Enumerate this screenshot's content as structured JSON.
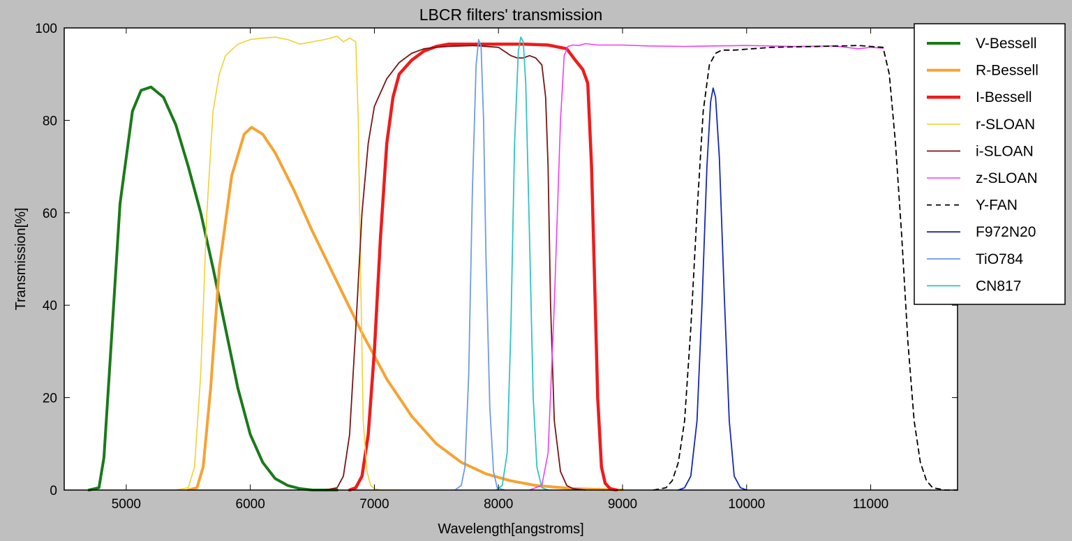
{
  "chart_data": {
    "type": "line",
    "title": "LBCR filters' transmission",
    "xlabel": "Wavelength[angstroms]",
    "ylabel": "Transmission[%]",
    "xlim": [
      4500,
      11700
    ],
    "ylim": [
      0,
      100
    ],
    "xticks": [
      5000,
      6000,
      7000,
      8000,
      9000,
      10000,
      11000
    ],
    "yticks": [
      0,
      20,
      40,
      60,
      80,
      100
    ],
    "legend_position": "top-right",
    "grid": false,
    "series": [
      {
        "name": "V-Bessell",
        "color": "#1a7a1a",
        "width": 4,
        "dash": "",
        "x": [
          4700,
          4780,
          4820,
          4870,
          4950,
          5050,
          5120,
          5200,
          5300,
          5400,
          5500,
          5600,
          5700,
          5800,
          5900,
          6000,
          6100,
          6200,
          6300,
          6400,
          6500,
          6700
        ],
        "y": [
          0,
          0.5,
          7,
          28,
          62,
          82,
          86.5,
          87.2,
          85,
          79,
          70,
          60,
          48,
          35,
          22,
          12,
          6,
          2.5,
          1,
          0.3,
          0,
          0
        ]
      },
      {
        "name": "R-Bessell",
        "color": "#f5a332",
        "width": 4,
        "dash": "",
        "x": [
          5500,
          5570,
          5620,
          5680,
          5750,
          5850,
          5950,
          6010,
          6100,
          6200,
          6350,
          6500,
          6700,
          6900,
          7100,
          7300,
          7500,
          7700,
          7900,
          8100,
          8300,
          8600,
          9000
        ],
        "y": [
          0,
          0.5,
          5,
          22,
          48,
          68,
          77,
          78.5,
          77,
          73,
          65,
          56,
          45,
          34,
          24,
          16,
          10,
          6,
          3.5,
          2,
          1,
          0.3,
          0
        ]
      },
      {
        "name": "I-Bessell",
        "color": "#ee1c1c",
        "width": 4.5,
        "dash": "",
        "x": [
          6800,
          6850,
          6900,
          6950,
          7000,
          7050,
          7100,
          7150,
          7200,
          7300,
          7400,
          7500,
          7600,
          7800,
          8000,
          8200,
          8400,
          8550,
          8620,
          8680,
          8720,
          8750,
          8780,
          8800,
          8830,
          8860,
          8900,
          8950
        ],
        "y": [
          0,
          0.5,
          3,
          12,
          30,
          55,
          75,
          85,
          90,
          93,
          95,
          96,
          96.5,
          96.5,
          96.5,
          96.5,
          96.3,
          95.5,
          93,
          91,
          88,
          70,
          40,
          20,
          5,
          1.5,
          0.3,
          0
        ]
      },
      {
        "name": "r-SLOAN",
        "color": "#f2d12e",
        "width": 1.6,
        "dash": "",
        "x": [
          5400,
          5500,
          5550,
          5600,
          5650,
          5700,
          5750,
          5800,
          5900,
          6000,
          6100,
          6200,
          6300,
          6400,
          6500,
          6600,
          6700,
          6750,
          6800,
          6850,
          6870,
          6890,
          6910,
          6940,
          6970,
          7000,
          7050,
          7200
        ],
        "y": [
          0,
          0.5,
          5,
          25,
          60,
          82,
          90,
          94,
          96.5,
          97.5,
          97.8,
          98,
          97.5,
          96.5,
          97,
          97.5,
          98.2,
          97,
          97.8,
          97,
          80,
          45,
          15,
          4,
          1,
          0.3,
          0,
          0
        ]
      },
      {
        "name": "i-SLOAN",
        "color": "#7a1414",
        "width": 1.8,
        "dash": "",
        "x": [
          6600,
          6700,
          6750,
          6800,
          6850,
          6900,
          6950,
          7000,
          7100,
          7200,
          7300,
          7400,
          7500,
          7600,
          7800,
          8000,
          8100,
          8150,
          8200,
          8250,
          8300,
          8350,
          8380,
          8400,
          8420,
          8450,
          8500,
          8550,
          8600,
          8700
        ],
        "y": [
          0,
          0.5,
          3,
          12,
          35,
          60,
          75,
          83,
          89,
          92.5,
          94.5,
          95.5,
          95.8,
          96,
          96.2,
          95.8,
          94,
          93.5,
          93.5,
          94,
          93.5,
          92,
          85,
          70,
          40,
          15,
          4,
          1,
          0.3,
          0
        ]
      },
      {
        "name": "z-SLOAN",
        "color": "#f23cf2",
        "width": 1.6,
        "dash": "",
        "x": [
          8250,
          8350,
          8400,
          8450,
          8500,
          8530,
          8560,
          8600,
          8650,
          8700,
          8800,
          9000,
          9200,
          9500,
          10000,
          10400,
          10700,
          10900,
          11000,
          11100
        ],
        "y": [
          0,
          1,
          8,
          40,
          80,
          94,
          96,
          96.3,
          96.2,
          96.6,
          96.3,
          96.3,
          96.1,
          96,
          96.2,
          96,
          96.1,
          95.5,
          95.8,
          95.6
        ]
      },
      {
        "name": "Y-FAN",
        "color": "#000000",
        "width": 1.8,
        "dash": "7,6",
        "x": [
          9250,
          9350,
          9400,
          9450,
          9500,
          9550,
          9600,
          9650,
          9700,
          9750,
          9800,
          9900,
          10200,
          10600,
          10900,
          11100,
          11150,
          11200,
          11250,
          11300,
          11350,
          11400,
          11450,
          11500,
          11600,
          11700
        ],
        "y": [
          0,
          0.5,
          2,
          6,
          15,
          35,
          60,
          82,
          92,
          94.5,
          95.2,
          95.2,
          95.8,
          96,
          96.2,
          95.8,
          90,
          75,
          55,
          32,
          15,
          6,
          2,
          0.5,
          0,
          0
        ]
      },
      {
        "name": "F972N20",
        "color": "#1428b4",
        "width": 1.8,
        "dash": "",
        "x": [
          9450,
          9500,
          9550,
          9600,
          9640,
          9680,
          9710,
          9730,
          9750,
          9780,
          9820,
          9860,
          9900,
          9950,
          10000
        ],
        "y": [
          0,
          0.5,
          3,
          15,
          40,
          70,
          84,
          87,
          85,
          72,
          42,
          15,
          3,
          0.5,
          0
        ]
      },
      {
        "name": "TiO784",
        "color": "#6e9be6",
        "width": 1.8,
        "dash": "",
        "x": [
          7650,
          7700,
          7730,
          7760,
          7790,
          7820,
          7840,
          7860,
          7880,
          7900,
          7930,
          7960,
          7990,
          8050
        ],
        "y": [
          0,
          1,
          5,
          25,
          65,
          92,
          97.5,
          96,
          80,
          50,
          18,
          4,
          0.5,
          0
        ]
      },
      {
        "name": "CN817",
        "color": "#2ec4c4",
        "width": 1.8,
        "dash": "",
        "x": [
          7980,
          8030,
          8070,
          8100,
          8130,
          8160,
          8180,
          8200,
          8220,
          8250,
          8280,
          8310,
          8350,
          8400
        ],
        "y": [
          0,
          1,
          8,
          35,
          75,
          95,
          98,
          97,
          88,
          55,
          20,
          5,
          0.5,
          0
        ]
      }
    ]
  }
}
